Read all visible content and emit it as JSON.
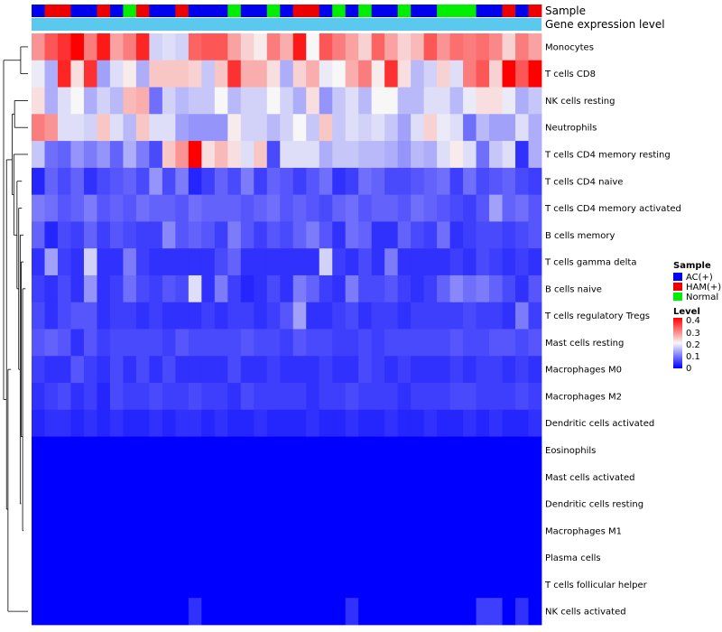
{
  "chart_data": {
    "type": "heatmap",
    "annotation_tracks": [
      "Sample",
      "Gene expression level"
    ],
    "legend": {
      "sample_title": "Sample",
      "sample_groups": [
        {
          "name": "AC(+)",
          "color": "#0000EE"
        },
        {
          "name": "HAM(+)",
          "color": "#EE0000"
        },
        {
          "name": "Normal",
          "color": "#00EE00"
        }
      ],
      "level_title": "Level",
      "level_ticks": [
        "0.4",
        "0.3",
        "0.2",
        "0.1",
        "0"
      ],
      "scale": {
        "min": 0,
        "max": 0.4,
        "low_color": "#0000FF",
        "mid_color": "#F7F7F7",
        "high_color": "#FF0000",
        "mid_value": 0.2
      }
    },
    "gene_expression_color": "#5BC8EE",
    "samples": [
      "AC(+)",
      "HAM(+)",
      "HAM(+)",
      "AC(+)",
      "AC(+)",
      "HAM(+)",
      "AC(+)",
      "Normal",
      "HAM(+)",
      "AC(+)",
      "AC(+)",
      "HAM(+)",
      "AC(+)",
      "AC(+)",
      "AC(+)",
      "Normal",
      "AC(+)",
      "AC(+)",
      "Normal",
      "AC(+)",
      "HAM(+)",
      "HAM(+)",
      "AC(+)",
      "Normal",
      "AC(+)",
      "Normal",
      "AC(+)",
      "AC(+)",
      "Normal",
      "AC(+)",
      "AC(+)",
      "Normal",
      "Normal",
      "Normal",
      "AC(+)",
      "AC(+)",
      "HAM(+)",
      "AC(+)",
      "HAM(+)"
    ],
    "rows": [
      {
        "name": "Monocytes",
        "values": [
          0.28,
          0.33,
          0.36,
          0.4,
          0.3,
          0.38,
          0.27,
          0.3,
          0.37,
          0.17,
          0.18,
          0.17,
          0.32,
          0.33,
          0.33,
          0.27,
          0.23,
          0.21,
          0.3,
          0.26,
          0.38,
          0.2,
          0.33,
          0.3,
          0.27,
          0.23,
          0.32,
          0.27,
          0.23,
          0.25,
          0.33,
          0.28,
          0.31,
          0.3,
          0.31,
          0.29,
          0.23,
          0.3,
          0.27
        ]
      },
      {
        "name": "T cells CD8",
        "values": [
          0.19,
          0.14,
          0.37,
          0.22,
          0.36,
          0.13,
          0.18,
          0.21,
          0.14,
          0.24,
          0.24,
          0.24,
          0.23,
          0.16,
          0.24,
          0.36,
          0.26,
          0.26,
          0.22,
          0.14,
          0.23,
          0.26,
          0.19,
          0.2,
          0.26,
          0.3,
          0.21,
          0.36,
          0.22,
          0.15,
          0.17,
          0.23,
          0.18,
          0.3,
          0.33,
          0.23,
          0.4,
          0.33,
          0.4
        ]
      },
      {
        "name": "NK cells resting",
        "values": [
          0.22,
          0.14,
          0.18,
          0.2,
          0.14,
          0.17,
          0.15,
          0.25,
          0.26,
          0.09,
          0.17,
          0.15,
          0.16,
          0.16,
          0.2,
          0.15,
          0.17,
          0.17,
          0.2,
          0.17,
          0.14,
          0.22,
          0.12,
          0.16,
          0.18,
          0.15,
          0.2,
          0.2,
          0.15,
          0.15,
          0.18,
          0.18,
          0.15,
          0.19,
          0.22,
          0.22,
          0.19,
          0.14,
          0.16
        ]
      },
      {
        "name": "Neutrophils",
        "values": [
          0.3,
          0.28,
          0.18,
          0.18,
          0.17,
          0.24,
          0.18,
          0.15,
          0.24,
          0.18,
          0.18,
          0.13,
          0.12,
          0.12,
          0.12,
          0.21,
          0.17,
          0.17,
          0.15,
          0.17,
          0.2,
          0.16,
          0.24,
          0.16,
          0.18,
          0.17,
          0.18,
          0.16,
          0.13,
          0.18,
          0.23,
          0.19,
          0.18,
          0.09,
          0.15,
          0.13,
          0.13,
          0.18,
          0.14
        ]
      },
      {
        "name": "T cells CD4 memory resting",
        "values": [
          0.16,
          0.09,
          0.08,
          0.12,
          0.1,
          0.12,
          0.08,
          0.14,
          0.1,
          0.06,
          0.24,
          0.28,
          0.4,
          0.22,
          0.25,
          0.22,
          0.18,
          0.24,
          0.06,
          0.18,
          0.18,
          0.18,
          0.14,
          0.16,
          0.16,
          0.15,
          0.15,
          0.14,
          0.12,
          0.15,
          0.14,
          0.18,
          0.21,
          0.18,
          0.09,
          0.16,
          0.18,
          0.04,
          0.14
        ]
      },
      {
        "name": "T cells CD4 naive",
        "values": [
          0.03,
          0.08,
          0.06,
          0.08,
          0.04,
          0.06,
          0.07,
          0.08,
          0.06,
          0.12,
          0.06,
          0.1,
          0.03,
          0.05,
          0.08,
          0.06,
          0.1,
          0.05,
          0.08,
          0.07,
          0.05,
          0.07,
          0.09,
          0.04,
          0.05,
          0.09,
          0.08,
          0.06,
          0.06,
          0.07,
          0.08,
          0.09,
          0.05,
          0.09,
          0.06,
          0.07,
          0.08,
          0.06,
          0.05
        ]
      },
      {
        "name": "T cells CD4 memory activated",
        "values": [
          0.1,
          0.09,
          0.07,
          0.08,
          0.1,
          0.07,
          0.08,
          0.07,
          0.09,
          0.08,
          0.08,
          0.07,
          0.09,
          0.08,
          0.08,
          0.08,
          0.07,
          0.08,
          0.09,
          0.07,
          0.08,
          0.07,
          0.06,
          0.08,
          0.09,
          0.07,
          0.08,
          0.08,
          0.07,
          0.09,
          0.08,
          0.07,
          0.06,
          0.05,
          0.07,
          0.13,
          0.08,
          0.09,
          0.07
        ]
      },
      {
        "name": "B cells memory",
        "values": [
          0.08,
          0.03,
          0.06,
          0.05,
          0.08,
          0.05,
          0.07,
          0.06,
          0.05,
          0.05,
          0.11,
          0.07,
          0.08,
          0.07,
          0.05,
          0.1,
          0.07,
          0.05,
          0.07,
          0.06,
          0.08,
          0.1,
          0.07,
          0.04,
          0.09,
          0.08,
          0.04,
          0.04,
          0.08,
          0.06,
          0.05,
          0.09,
          0.04,
          0.05,
          0.06,
          0.06,
          0.05,
          0.06,
          0.07
        ]
      },
      {
        "name": "T cells gamma delta",
        "values": [
          0.04,
          0.13,
          0.05,
          0.04,
          0.17,
          0.04,
          0.04,
          0.1,
          0.05,
          0.04,
          0.04,
          0.04,
          0.04,
          0.04,
          0.06,
          0.08,
          0.04,
          0.04,
          0.04,
          0.04,
          0.04,
          0.04,
          0.17,
          0.05,
          0.04,
          0.06,
          0.04,
          0.1,
          0.04,
          0.04,
          0.04,
          0.04,
          0.05,
          0.04,
          0.06,
          0.05,
          0.04,
          0.05,
          0.04
        ]
      },
      {
        "name": "B cells naive",
        "values": [
          0.05,
          0.04,
          0.06,
          0.04,
          0.12,
          0.04,
          0.05,
          0.09,
          0.06,
          0.05,
          0.07,
          0.06,
          0.18,
          0.04,
          0.1,
          0.05,
          0.03,
          0.04,
          0.06,
          0.04,
          0.1,
          0.08,
          0.05,
          0.04,
          0.1,
          0.06,
          0.06,
          0.07,
          0.05,
          0.04,
          0.05,
          0.08,
          0.11,
          0.09,
          0.1,
          0.08,
          0.06,
          0.04,
          0.07
        ]
      },
      {
        "name": "T cells regulatory  Tregs",
        "values": [
          0.06,
          0.04,
          0.06,
          0.07,
          0.07,
          0.04,
          0.05,
          0.05,
          0.04,
          0.05,
          0.04,
          0.04,
          0.04,
          0.05,
          0.04,
          0.05,
          0.05,
          0.04,
          0.05,
          0.07,
          0.13,
          0.04,
          0.04,
          0.05,
          0.06,
          0.04,
          0.05,
          0.05,
          0.04,
          0.05,
          0.05,
          0.05,
          0.05,
          0.06,
          0.05,
          0.05,
          0.04,
          0.1,
          0.05
        ]
      },
      {
        "name": "Mast cells resting",
        "values": [
          0.07,
          0.08,
          0.07,
          0.04,
          0.07,
          0.05,
          0.06,
          0.06,
          0.06,
          0.06,
          0.05,
          0.07,
          0.06,
          0.06,
          0.06,
          0.06,
          0.07,
          0.06,
          0.06,
          0.05,
          0.07,
          0.06,
          0.06,
          0.05,
          0.05,
          0.06,
          0.05,
          0.06,
          0.06,
          0.06,
          0.06,
          0.06,
          0.07,
          0.06,
          0.06,
          0.07,
          0.07,
          0.06,
          0.07
        ]
      },
      {
        "name": "Macrophages M0",
        "values": [
          0.05,
          0.04,
          0.04,
          0.07,
          0.05,
          0.04,
          0.06,
          0.04,
          0.06,
          0.04,
          0.06,
          0.04,
          0.04,
          0.04,
          0.04,
          0.06,
          0.04,
          0.04,
          0.05,
          0.04,
          0.04,
          0.04,
          0.05,
          0.04,
          0.04,
          0.06,
          0.05,
          0.04,
          0.05,
          0.04,
          0.04,
          0.04,
          0.05,
          0.04,
          0.05,
          0.05,
          0.04,
          0.05,
          0.04
        ]
      },
      {
        "name": "Macrophages M2",
        "values": [
          0.04,
          0.05,
          0.06,
          0.04,
          0.05,
          0.03,
          0.06,
          0.05,
          0.05,
          0.06,
          0.05,
          0.05,
          0.06,
          0.05,
          0.05,
          0.04,
          0.06,
          0.05,
          0.05,
          0.05,
          0.05,
          0.04,
          0.05,
          0.05,
          0.06,
          0.05,
          0.05,
          0.05,
          0.04,
          0.05,
          0.05,
          0.05,
          0.06,
          0.06,
          0.05,
          0.05,
          0.05,
          0.06,
          0.05
        ]
      },
      {
        "name": "Dendritic cells activated",
        "values": [
          0.03,
          0.04,
          0.04,
          0.03,
          0.04,
          0.03,
          0.04,
          0.03,
          0.03,
          0.04,
          0.03,
          0.04,
          0.04,
          0.03,
          0.04,
          0.03,
          0.03,
          0.04,
          0.03,
          0.03,
          0.03,
          0.04,
          0.03,
          0.03,
          0.04,
          0.03,
          0.03,
          0.04,
          0.03,
          0.03,
          0.04,
          0.03,
          0.03,
          0.04,
          0.03,
          0.04,
          0.03,
          0.03,
          0.04
        ]
      },
      {
        "name": "Eosinophils",
        "values": [
          0,
          0,
          0,
          0,
          0,
          0,
          0,
          0,
          0,
          0,
          0,
          0,
          0,
          0,
          0,
          0,
          0,
          0,
          0,
          0,
          0,
          0,
          0,
          0,
          0,
          0,
          0,
          0,
          0,
          0,
          0,
          0,
          0,
          0,
          0,
          0,
          0,
          0,
          0
        ]
      },
      {
        "name": "Mast cells activated",
        "values": [
          0,
          0,
          0,
          0,
          0,
          0,
          0,
          0,
          0,
          0,
          0,
          0,
          0,
          0,
          0,
          0,
          0,
          0,
          0,
          0,
          0,
          0,
          0,
          0,
          0,
          0,
          0,
          0,
          0,
          0,
          0,
          0,
          0,
          0,
          0,
          0,
          0,
          0,
          0
        ]
      },
      {
        "name": "Dendritic cells resting",
        "values": [
          0,
          0,
          0,
          0,
          0,
          0,
          0,
          0,
          0,
          0,
          0,
          0,
          0,
          0,
          0,
          0,
          0,
          0,
          0,
          0,
          0,
          0,
          0,
          0,
          0,
          0,
          0,
          0,
          0,
          0,
          0,
          0,
          0,
          0,
          0,
          0,
          0,
          0,
          0
        ]
      },
      {
        "name": "Macrophages M1",
        "values": [
          0,
          0,
          0,
          0,
          0,
          0,
          0,
          0,
          0,
          0,
          0,
          0,
          0,
          0,
          0,
          0,
          0,
          0,
          0,
          0,
          0,
          0,
          0,
          0,
          0,
          0,
          0,
          0,
          0,
          0,
          0,
          0,
          0,
          0,
          0,
          0,
          0,
          0,
          0
        ]
      },
      {
        "name": "Plasma cells",
        "values": [
          0,
          0,
          0,
          0,
          0,
          0,
          0,
          0,
          0,
          0,
          0,
          0,
          0,
          0,
          0,
          0,
          0,
          0,
          0,
          0,
          0,
          0,
          0,
          0,
          0,
          0,
          0,
          0,
          0,
          0,
          0,
          0,
          0,
          0,
          0,
          0,
          0,
          0,
          0
        ]
      },
      {
        "name": "T cells follicular helper",
        "values": [
          0,
          0,
          0,
          0,
          0,
          0,
          0,
          0,
          0,
          0,
          0,
          0,
          0,
          0,
          0,
          0,
          0,
          0,
          0,
          0,
          0,
          0,
          0,
          0,
          0,
          0,
          0,
          0,
          0,
          0,
          0,
          0,
          0,
          0,
          0,
          0,
          0,
          0,
          0
        ]
      },
      {
        "name": "NK cells activated",
        "values": [
          0,
          0,
          0,
          0,
          0,
          0,
          0,
          0,
          0,
          0,
          0,
          0,
          0.04,
          0,
          0,
          0,
          0,
          0,
          0,
          0,
          0,
          0,
          0,
          0,
          0.04,
          0,
          0,
          0,
          0,
          0,
          0,
          0,
          0,
          0,
          0.05,
          0.05,
          0,
          0.04,
          0
        ]
      }
    ],
    "row_dendrogram": [
      {
        "type": "v",
        "x": 0.0,
        "y0": 0.5,
        "y1": 13.12
      },
      {
        "type": "h",
        "x0": 0.0,
        "x1": 0.7,
        "y": 0.5
      },
      {
        "type": "v",
        "x": 0.7,
        "y0": 0.0,
        "y1": 1.0
      },
      {
        "type": "h",
        "x0": 0.7,
        "x1": 1.0,
        "y": 0.0
      },
      {
        "type": "h",
        "x0": 0.7,
        "x1": 1.0,
        "y": 1.0
      },
      {
        "type": "h",
        "x0": 0.0,
        "x1": 0.12,
        "y": 13.12
      },
      {
        "type": "v",
        "x": 0.12,
        "y0": 4.2,
        "y1": 17.2
      },
      {
        "type": "h",
        "x0": 0.12,
        "x1": 0.35,
        "y": 4.2
      },
      {
        "type": "v",
        "x": 0.35,
        "y0": 2.5,
        "y1": 5.5
      },
      {
        "type": "h",
        "x0": 0.35,
        "x1": 0.45,
        "y": 2.5
      },
      {
        "type": "v",
        "x": 0.45,
        "y0": 2.0,
        "y1": 3.0
      },
      {
        "type": "h",
        "x0": 0.45,
        "x1": 1.0,
        "y": 2.0
      },
      {
        "type": "h",
        "x0": 0.45,
        "x1": 1.0,
        "y": 3.0
      },
      {
        "type": "h",
        "x0": 0.35,
        "x1": 0.42,
        "y": 5.5
      },
      {
        "type": "v",
        "x": 0.42,
        "y0": 4.0,
        "y1": 7.0
      },
      {
        "type": "h",
        "x0": 0.42,
        "x1": 1.0,
        "y": 4.0
      },
      {
        "type": "h",
        "x0": 0.42,
        "x1": 0.55,
        "y": 7.0
      },
      {
        "type": "v",
        "x": 0.55,
        "y0": 5.0,
        "y1": 9.0
      },
      {
        "type": "h",
        "x0": 0.55,
        "x1": 0.75,
        "y": 5.0
      },
      {
        "type": "h",
        "x0": 0.55,
        "x1": 0.62,
        "y": 9.0
      },
      {
        "type": "v",
        "x": 0.62,
        "y0": 6.0,
        "y1": 12.0
      },
      {
        "type": "h",
        "x0": 0.62,
        "x1": 0.75,
        "y": 6.0
      },
      {
        "type": "h",
        "x0": 0.62,
        "x1": 0.68,
        "y": 12.0
      },
      {
        "type": "v",
        "x": 0.68,
        "y0": 7.0,
        "y1": 17.0
      },
      {
        "type": "h",
        "x0": 0.68,
        "x1": 0.82,
        "y": 7.0
      },
      {
        "type": "h",
        "x0": 0.68,
        "x1": 0.72,
        "y": 17.0
      },
      {
        "type": "v",
        "x": 0.72,
        "y0": 8.0,
        "y1": 14.5
      },
      {
        "type": "h",
        "x0": 0.72,
        "x1": 0.82,
        "y": 8.0
      },
      {
        "type": "h",
        "x0": 0.72,
        "x1": 0.78,
        "y": 14.5
      },
      {
        "type": "v",
        "x": 0.78,
        "y0": 9.0,
        "y1": 18.0
      },
      {
        "type": "h",
        "x0": 0.78,
        "x1": 0.9,
        "y": 9.0
      },
      {
        "type": "h",
        "x0": 0.78,
        "x1": 0.82,
        "y": 18.0
      },
      {
        "type": "h",
        "x0": 0.12,
        "x1": 0.18,
        "y": 17.2
      },
      {
        "type": "v",
        "x": 0.18,
        "y0": 12.0,
        "y1": 21.0
      },
      {
        "type": "h",
        "x0": 0.18,
        "x1": 0.3,
        "y": 12.0
      },
      {
        "type": "h",
        "x0": 0.18,
        "x1": 1.0,
        "y": 21.0
      }
    ]
  }
}
